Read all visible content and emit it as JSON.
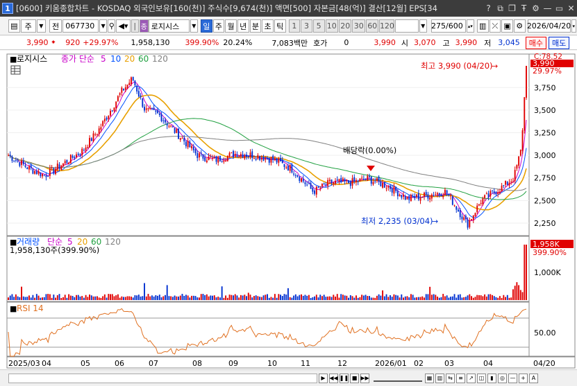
{
  "window": {
    "title": "[0600] 키움종합차트 - KOSDAQ 외국인보유[160(천)] 주식수[9,674(천)] 액면[500] 자본금[48(억)] 결산[12월] EPS[34",
    "number": "1"
  },
  "toolbar": {
    "type_label": "주",
    "prev_label": "전",
    "code": "067730",
    "indicator_button": "로지시스",
    "period_buttons": [
      "일",
      "주",
      "월",
      "년",
      "분",
      "초",
      "틱"
    ],
    "selected_period": "일",
    "interval_buttons": [
      "1",
      "3",
      "5",
      "10",
      "20",
      "30",
      "60",
      "120"
    ],
    "range": "275/600",
    "date": "2026/04/20"
  },
  "pricebar": {
    "price": "3,990",
    "change": "920",
    "change_pct": "+29.97%",
    "volume": "1,958,130",
    "volume_pct": "399.90%",
    "turnover": "20.24%",
    "amount": "7,083백만",
    "quote_label": "호가",
    "quote_value": "0",
    "quote_price": "3,990",
    "open_label": "시",
    "open": "3,070",
    "high_label": "고",
    "high": "3,990",
    "low_label": "저",
    "low": "3,045",
    "buy_button": "매수",
    "sell_button": "매도"
  },
  "price_panel": {
    "legend_name": "로지시스",
    "legend_ma_title": "종가 단순",
    "legend_periods": [
      "5",
      "10",
      "20",
      "60",
      "120"
    ],
    "high_annotation": "최고 3,990 (04/20)",
    "low_annotation": "최저 2,235 (03/04)",
    "dividend_annotation": "배당락(0.00%)",
    "current_price_tag": "3,990",
    "current_pct_tag": "29.97%",
    "top_tick": "C:78.52",
    "y_ticks": [
      "3,750",
      "3,500",
      "3,250",
      "3,000",
      "2,750",
      "2,500",
      "2,250"
    ]
  },
  "volume_panel": {
    "legend_name": "거래량",
    "legend_ma_title": "단순",
    "legend_periods": [
      "5",
      "20",
      "60",
      "120"
    ],
    "value_text": "1,958,130주(399.90%)",
    "current_tag": "1,958K",
    "current_pct": "399.90%",
    "y_tick": "1,000K"
  },
  "rsi_panel": {
    "legend_name": "RSI 14",
    "y_tick": "50.00"
  },
  "x_axis": {
    "labels": [
      "2025/03",
      "04",
      "05",
      "06",
      "07",
      "08",
      "09",
      "10",
      "11",
      "12",
      "2026/01",
      "02",
      "03",
      "04",
      "04/20"
    ]
  },
  "colors": {
    "up": "#e00000",
    "down": "#0030d0",
    "ma5": "#c800c8",
    "ma10": "#0050ff",
    "ma20": "#e8a000",
    "ma60": "#20a040",
    "ma120": "#808080",
    "rsi": "#e07020"
  },
  "chart_data": {
    "type": "candlestick",
    "y_range": [
      2150,
      3990
    ],
    "points": [
      [
        "2025-03-03",
        3000
      ],
      [
        "2025-03-20",
        2850
      ],
      [
        "2025-04-01",
        2780
      ],
      [
        "2025-04-15",
        2900
      ],
      [
        "2025-05-01",
        3050
      ],
      [
        "2025-05-15",
        3300
      ],
      [
        "2025-06-01",
        3700
      ],
      [
        "2025-06-10",
        3850
      ],
      [
        "2025-06-20",
        3500
      ],
      [
        "2025-07-01",
        3450
      ],
      [
        "2025-07-15",
        3250
      ],
      [
        "2025-08-01",
        3000
      ],
      [
        "2025-08-15",
        2950
      ],
      [
        "2025-09-01",
        3020
      ],
      [
        "2025-09-15",
        3000
      ],
      [
        "2025-10-01",
        2950
      ],
      [
        "2025-10-15",
        2850
      ],
      [
        "2025-11-01",
        2600
      ],
      [
        "2025-11-15",
        2700
      ],
      [
        "2025-12-01",
        2700
      ],
      [
        "2025-12-15",
        2740
      ],
      [
        "2026-01-01",
        2650
      ],
      [
        "2026-01-15",
        2520
      ],
      [
        "2026-02-01",
        2560
      ],
      [
        "2026-02-15",
        2600
      ],
      [
        "2026-03-04",
        2235
      ],
      [
        "2026-03-15",
        2500
      ],
      [
        "2026-04-01",
        2650
      ],
      [
        "2026-04-10",
        2750
      ],
      [
        "2026-04-16",
        3070
      ],
      [
        "2026-04-20",
        3990
      ]
    ]
  }
}
